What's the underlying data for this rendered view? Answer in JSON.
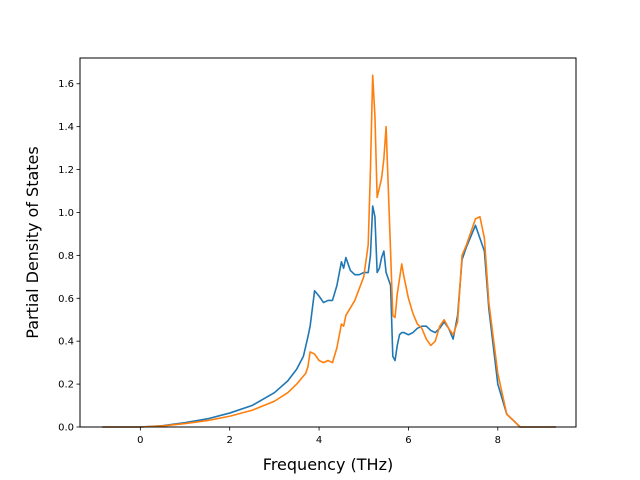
{
  "chart_data": {
    "type": "line",
    "title": "",
    "xlabel": "Frequency (THz)",
    "ylabel": "Partial Density of States",
    "xlim": [
      -1.35,
      9.75
    ],
    "ylim": [
      0,
      1.72
    ],
    "xticks": [
      0,
      2,
      4,
      6,
      8
    ],
    "xtick_labels": [
      "0",
      "2",
      "4",
      "6",
      "8"
    ],
    "yticks": [
      0.0,
      0.2,
      0.4,
      0.6,
      0.8,
      1.0,
      1.2,
      1.4,
      1.6
    ],
    "ytick_labels": [
      "0.0",
      "0.2",
      "0.4",
      "0.6",
      "0.8",
      "1.0",
      "1.2",
      "1.4",
      "1.6"
    ],
    "grid": false,
    "series": [
      {
        "color": "#1f77b4",
        "x": [
          -0.85,
          0.0,
          0.5,
          1.0,
          1.5,
          2.0,
          2.5,
          3.0,
          3.3,
          3.5,
          3.65,
          3.75,
          3.8,
          3.9,
          4.0,
          4.1,
          4.2,
          4.3,
          4.4,
          4.5,
          4.55,
          4.6,
          4.65,
          4.7,
          4.8,
          4.9,
          5.0,
          5.1,
          5.15,
          5.2,
          5.25,
          5.3,
          5.35,
          5.4,
          5.45,
          5.5,
          5.6,
          5.65,
          5.7,
          5.75,
          5.8,
          5.85,
          5.9,
          6.0,
          6.1,
          6.2,
          6.3,
          6.4,
          6.5,
          6.6,
          6.7,
          6.8,
          6.9,
          7.0,
          7.1,
          7.2,
          7.3,
          7.5,
          7.6,
          7.7,
          7.8,
          8.0,
          8.2,
          8.4,
          8.5,
          9.3
        ],
        "values": [
          0.0,
          0.0,
          0.006,
          0.02,
          0.038,
          0.065,
          0.1,
          0.16,
          0.215,
          0.27,
          0.33,
          0.42,
          0.47,
          0.635,
          0.61,
          0.58,
          0.59,
          0.59,
          0.66,
          0.77,
          0.74,
          0.79,
          0.76,
          0.73,
          0.71,
          0.71,
          0.72,
          0.72,
          0.8,
          1.03,
          0.98,
          0.72,
          0.74,
          0.79,
          0.82,
          0.72,
          0.66,
          0.33,
          0.31,
          0.38,
          0.43,
          0.44,
          0.44,
          0.43,
          0.44,
          0.46,
          0.47,
          0.47,
          0.45,
          0.44,
          0.46,
          0.49,
          0.46,
          0.41,
          0.52,
          0.78,
          0.84,
          0.94,
          0.88,
          0.82,
          0.55,
          0.2,
          0.06,
          0.02,
          0.0,
          0.0
        ]
      },
      {
        "color": "#ff7f0e",
        "x": [
          -0.85,
          0.0,
          0.5,
          1.0,
          1.5,
          2.0,
          2.5,
          3.0,
          3.3,
          3.5,
          3.7,
          3.75,
          3.8,
          3.9,
          4.0,
          4.1,
          4.2,
          4.3,
          4.4,
          4.5,
          4.55,
          4.6,
          4.8,
          5.0,
          5.1,
          5.15,
          5.2,
          5.25,
          5.3,
          5.4,
          5.45,
          5.5,
          5.6,
          5.65,
          5.7,
          5.75,
          5.85,
          5.9,
          6.0,
          6.1,
          6.2,
          6.3,
          6.4,
          6.5,
          6.6,
          6.7,
          6.8,
          6.9,
          7.0,
          7.1,
          7.2,
          7.3,
          7.5,
          7.6,
          7.7,
          7.8,
          8.0,
          8.2,
          8.4,
          8.5,
          9.3
        ],
        "values": [
          0.0,
          0.0,
          0.005,
          0.016,
          0.03,
          0.05,
          0.078,
          0.12,
          0.16,
          0.2,
          0.25,
          0.28,
          0.35,
          0.34,
          0.31,
          0.3,
          0.31,
          0.3,
          0.37,
          0.48,
          0.47,
          0.52,
          0.59,
          0.7,
          0.85,
          1.2,
          1.64,
          1.45,
          1.07,
          1.16,
          1.25,
          1.4,
          0.82,
          0.52,
          0.51,
          0.62,
          0.76,
          0.7,
          0.6,
          0.53,
          0.48,
          0.46,
          0.41,
          0.38,
          0.4,
          0.47,
          0.5,
          0.46,
          0.43,
          0.49,
          0.8,
          0.85,
          0.97,
          0.98,
          0.88,
          0.58,
          0.25,
          0.06,
          0.02,
          0.0,
          0.0
        ]
      }
    ]
  }
}
